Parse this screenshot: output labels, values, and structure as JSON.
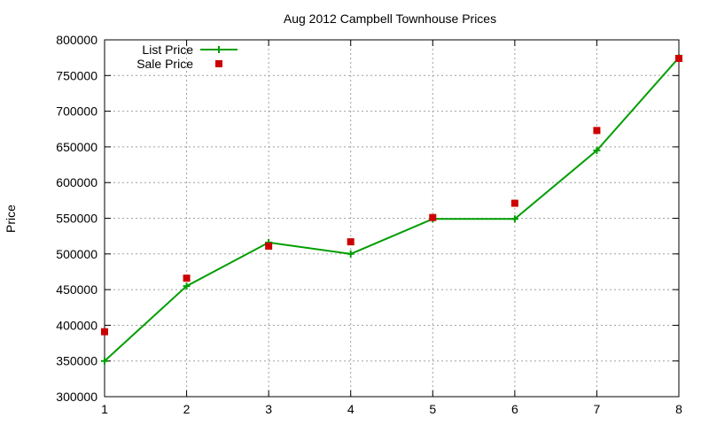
{
  "chart_data": {
    "type": "line",
    "title": "Aug 2012 Campbell Townhouse Prices",
    "xlabel": "",
    "ylabel": "Price",
    "xlim": [
      1,
      8
    ],
    "ylim": [
      300000,
      800000
    ],
    "x": [
      1,
      2,
      3,
      4,
      5,
      6,
      7,
      8
    ],
    "xticks": [
      "1",
      "2",
      "3",
      "4",
      "5",
      "6",
      "7",
      "8"
    ],
    "yticks": [
      "300000",
      "350000",
      "400000",
      "450000",
      "500000",
      "550000",
      "600000",
      "650000",
      "700000",
      "750000",
      "800000"
    ],
    "ytick_values": [
      300000,
      350000,
      400000,
      450000,
      500000,
      550000,
      600000,
      650000,
      700000,
      750000,
      800000
    ],
    "grid": true,
    "legend_position": "top-left",
    "series": [
      {
        "name": "List Price",
        "style": "line+cross",
        "color": "#009e00",
        "values": [
          350000,
          455000,
          516000,
          500000,
          549000,
          549000,
          645000,
          775000
        ]
      },
      {
        "name": "Sale Price",
        "style": "square-points",
        "color": "#cc0000",
        "values": [
          391000,
          466000,
          511000,
          517000,
          551000,
          571000,
          673000,
          774000
        ]
      }
    ]
  }
}
